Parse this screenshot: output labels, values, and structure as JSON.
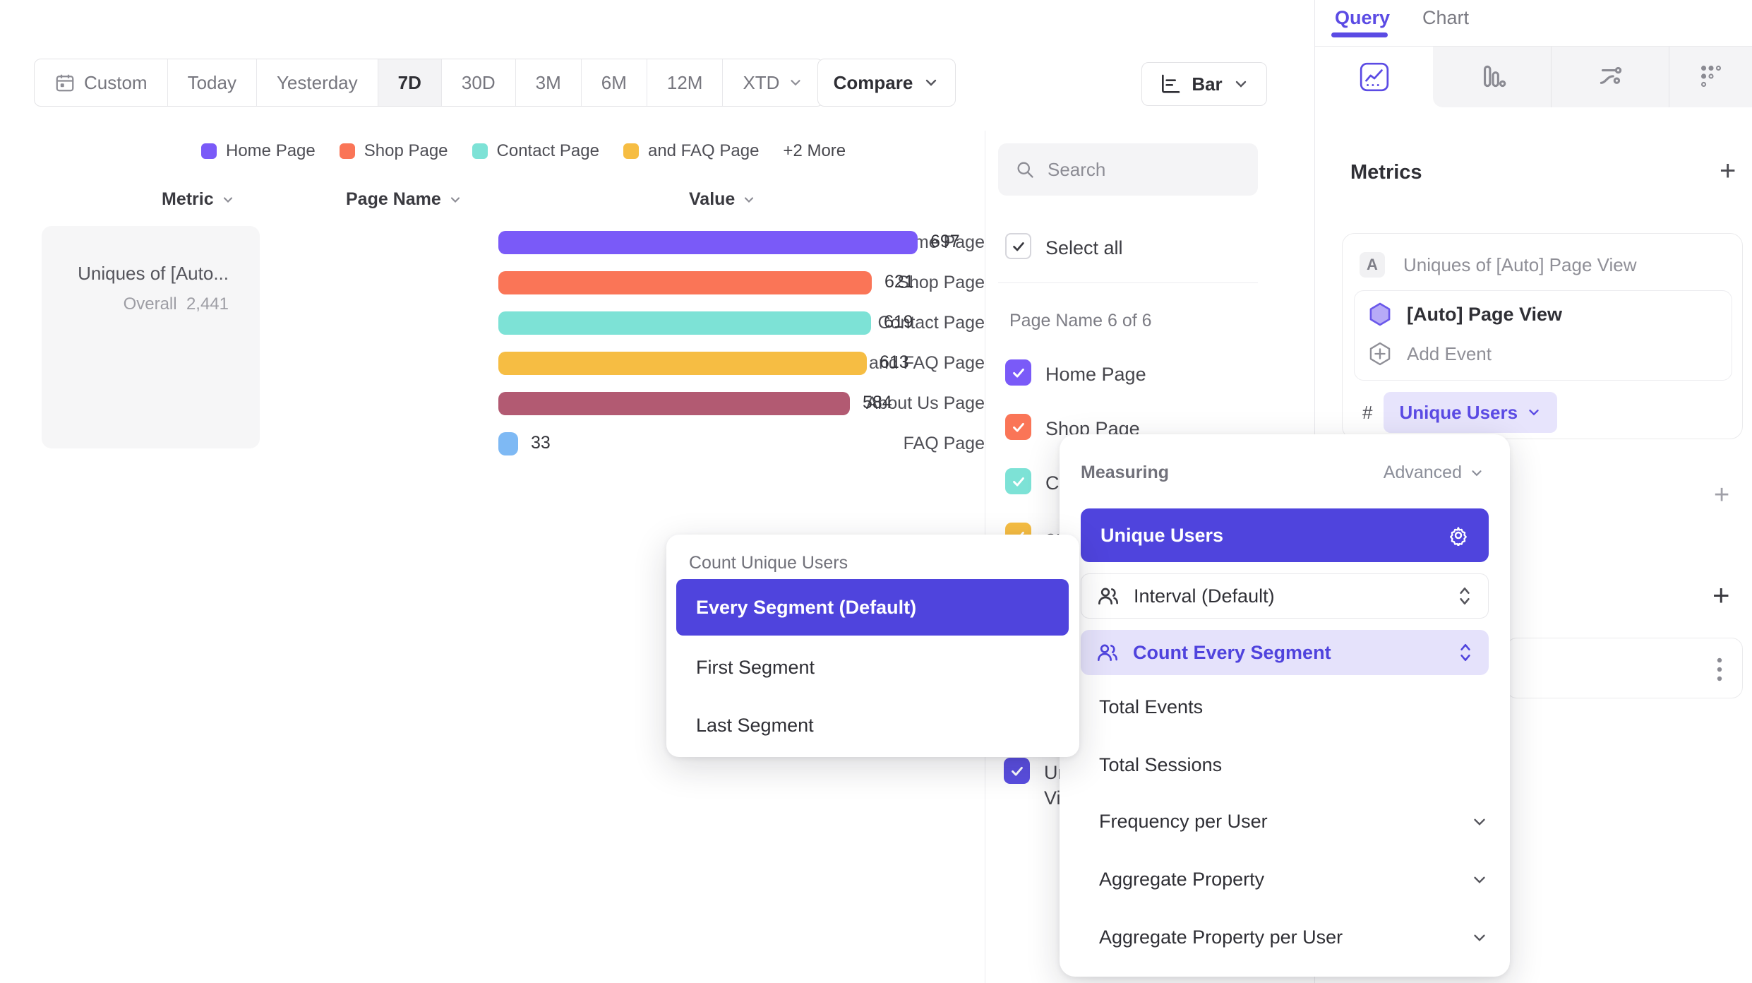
{
  "toolbar": {
    "date_ranges": [
      "Custom",
      "Today",
      "Yesterday",
      "7D",
      "30D",
      "3M",
      "6M",
      "12M",
      "XTD"
    ],
    "selected_range": "7D",
    "compare_label": "Compare",
    "chart_type_label": "Bar"
  },
  "chart_data": {
    "type": "bar",
    "orientation": "horizontal",
    "title": "Uniques of [Auto] Page View",
    "categories": [
      "Home Page",
      "Shop Page",
      "Contact Page",
      "and FAQ Page",
      "About Us Page",
      "FAQ Page"
    ],
    "values": [
      697,
      621,
      619,
      613,
      584,
      33
    ],
    "colors": [
      "#7a5af8",
      "#fa7557",
      "#7de2d6",
      "#f6bd43",
      "#b25a72",
      "#7eb9f4"
    ],
    "xlim": [
      0,
      697
    ],
    "grid": false,
    "legend_position": "top"
  },
  "legend": {
    "items": [
      {
        "label": "Home Page",
        "color": "#7a5af8"
      },
      {
        "label": "Shop Page",
        "color": "#fa7557"
      },
      {
        "label": "Contact Page",
        "color": "#7de2d6"
      },
      {
        "label": "and FAQ Page",
        "color": "#f6bd43"
      }
    ],
    "more_label": "+2 More"
  },
  "table": {
    "columns": {
      "metric": "Metric",
      "page_name": "Page Name",
      "value": "Value"
    },
    "metric_card": {
      "title": "Uniques of [Auto...",
      "overall_label": "Overall",
      "overall_value": "2,441"
    }
  },
  "filter_panel": {
    "search_placeholder": "Search",
    "select_all_label": "Select all",
    "section_label": "Page Name 6 of 6",
    "items": [
      {
        "label": "Home Page",
        "color": "#7a5af8",
        "checked": true
      },
      {
        "label": "Shop Page",
        "color": "#fa7557",
        "checked": true
      },
      {
        "label": "Contact Page",
        "color": "#7de2d6",
        "checked": true
      },
      {
        "label": "and FAQ Page",
        "color": "#f6bd43",
        "checked": true
      },
      {
        "label": "About Us Page",
        "color": "#b25a72",
        "checked": true
      },
      {
        "label": "FAQ Page",
        "color": "#7eb9f4",
        "checked": true
      }
    ],
    "metric_item": {
      "label": "Uniques of [Auto] Page View",
      "color": "#5a4ee0",
      "checked": true
    }
  },
  "segment_popover": {
    "title": "Count Unique Users",
    "selected_option": "Every Segment (Default)",
    "options": [
      "First Segment",
      "Last Segment"
    ]
  },
  "measuring_popover": {
    "title": "Measuring",
    "advanced_label": "Advanced",
    "selected": "Unique Users",
    "interval_label": "Interval (Default)",
    "count_segment_label": "Count Every Segment",
    "plain_options": [
      "Total Events",
      "Total Sessions"
    ],
    "expandable_options": [
      "Frequency per User",
      "Aggregate Property",
      "Aggregate Property per User"
    ]
  },
  "query_panel": {
    "tabs": {
      "query": "Query",
      "chart": "Chart"
    },
    "active_tab": "Query",
    "metrics_title": "Metrics",
    "metrics_add": "+",
    "metric_card": {
      "badge": "A",
      "title": "Uniques of [Auto] Page View",
      "event_label": "[Auto] Page View",
      "add_event_label": "Add Event",
      "measure_prefix": "#",
      "measure_label": "Unique Users"
    },
    "filters_add": "+",
    "breakdowns_add": "+"
  },
  "colors": {
    "accent": "#5b4be4",
    "selected_item": "#4f44dd",
    "selected_item_bg": "#e5e2fb"
  }
}
